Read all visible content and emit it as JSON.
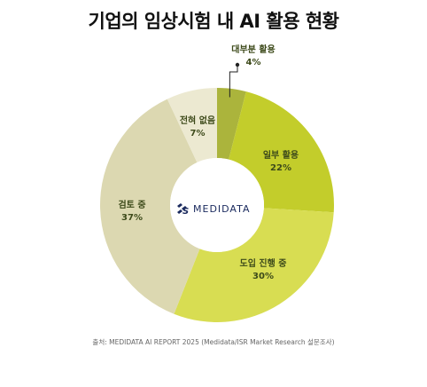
{
  "title": "기업의 임상시험 내 AI 활용 현황",
  "source": "출처: MEDIDATA AI REPORT 2025 (Medidata/ISR Market Research 설문조사)",
  "logo": {
    "text": "MEDIDATA",
    "icon": "3ds-logo-icon",
    "color": "#1a2a5e"
  },
  "chart_data": {
    "type": "pie",
    "donut": true,
    "slices": [
      {
        "label": "대부분 활용",
        "value": 4,
        "value_label": "4%",
        "color": "#abb43c"
      },
      {
        "label": "일부 활용",
        "value": 22,
        "value_label": "22%",
        "color": "#c3cd2b"
      },
      {
        "label": "도입 진행 중",
        "value": 30,
        "value_label": "30%",
        "color": "#d8dd52"
      },
      {
        "label": "검토 중",
        "value": 37,
        "value_label": "37%",
        "color": "#dcd8b1"
      },
      {
        "label": "전혀 없음",
        "value": 7,
        "value_label": "7%",
        "color": "#ece9d1"
      }
    ]
  }
}
